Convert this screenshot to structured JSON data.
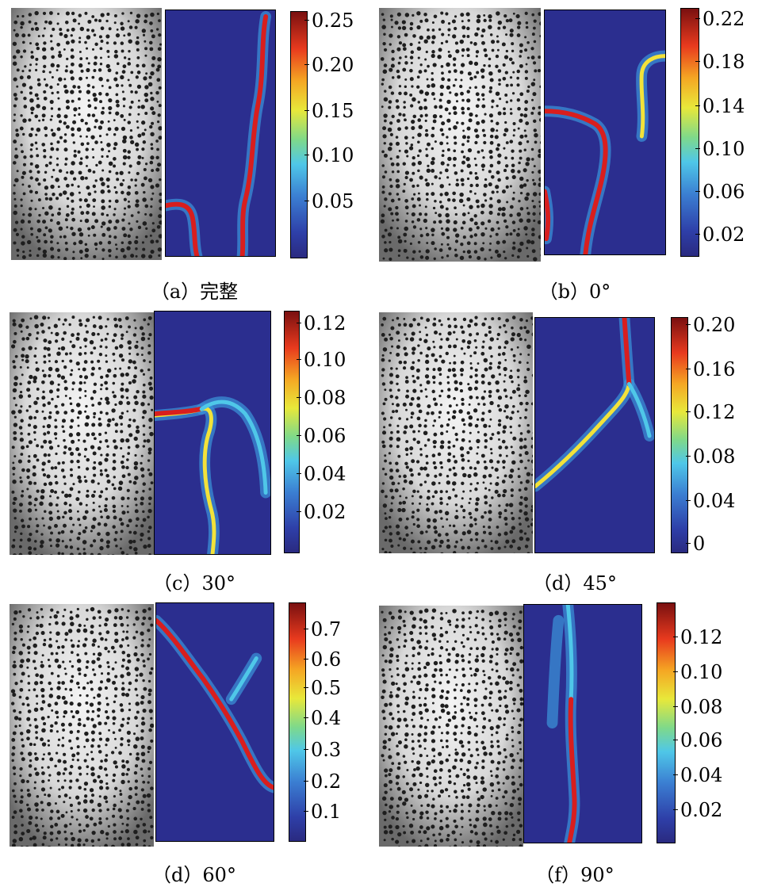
{
  "panels": [
    {
      "caption": "（a）完整",
      "ticks": [
        "0.25",
        "0.20",
        "0.15",
        "0.10",
        "0.05"
      ]
    },
    {
      "caption": "（b）0°",
      "ticks": [
        "0.22",
        "0.18",
        "0.14",
        "0.10",
        "0.06",
        "0.02"
      ]
    },
    {
      "caption": "（c）30°",
      "ticks": [
        "0.12",
        "0.10",
        "0.08",
        "0.06",
        "0.04",
        "0.02"
      ]
    },
    {
      "caption": "（d）45°",
      "ticks": [
        "0.20",
        "0.16",
        "0.12",
        "0.08",
        "0.04",
        "0"
      ]
    },
    {
      "caption": "（d）60°",
      "ticks": [
        "0.7",
        "0.6",
        "0.5",
        "0.4",
        "0.3",
        "0.2",
        "0.1"
      ]
    },
    {
      "caption": "（f）90°",
      "ticks": [
        "0.12",
        "0.10",
        "0.08",
        "0.06",
        "0.04",
        "0.02"
      ]
    }
  ],
  "colors": {
    "strain_background": "#2b2e8f",
    "colormap": "jet"
  }
}
